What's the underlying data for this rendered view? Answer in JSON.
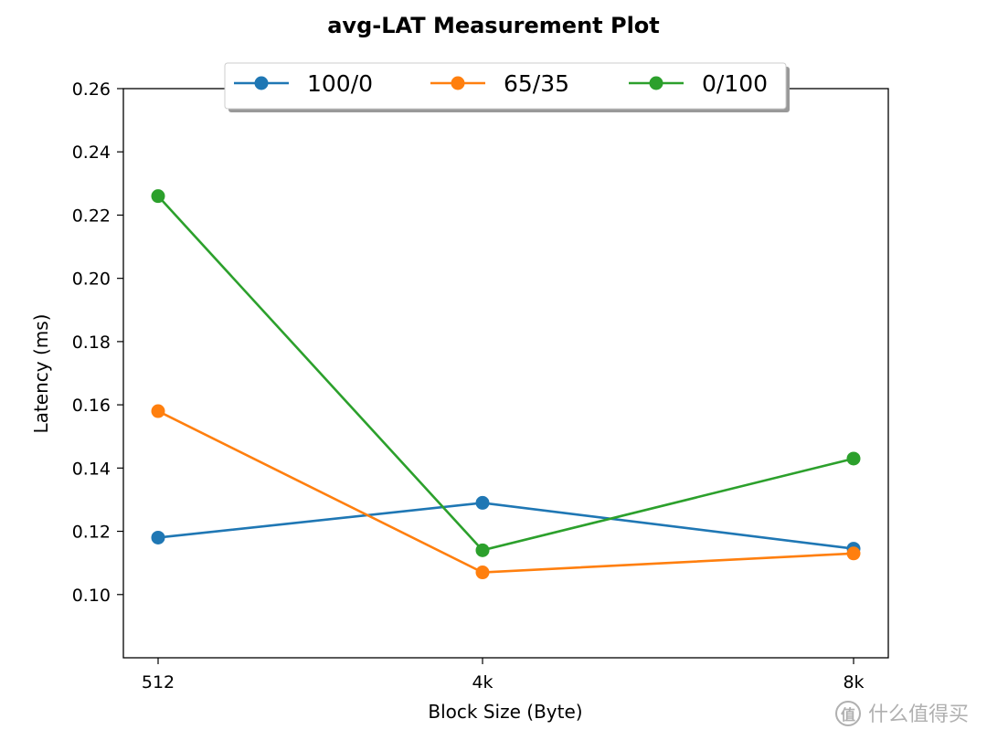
{
  "chart_data": {
    "type": "line",
    "title": "avg-LAT Measurement Plot",
    "xlabel": "Block Size (Byte)",
    "ylabel": "Latency (ms)",
    "categories": [
      "512",
      "4k",
      "8k"
    ],
    "ylim": [
      0.08,
      0.26
    ],
    "yticks": [
      "0.10",
      "0.12",
      "0.14",
      "0.16",
      "0.18",
      "0.20",
      "0.22",
      "0.24",
      "0.26"
    ],
    "legend_position": "top-center",
    "grid": false,
    "series": [
      {
        "name": "100/0",
        "color": "#1f77b4",
        "values": [
          0.118,
          0.129,
          0.1145
        ]
      },
      {
        "name": "65/35",
        "color": "#ff7f0e",
        "values": [
          0.158,
          0.107,
          0.113
        ]
      },
      {
        "name": "0/100",
        "color": "#2ca02c",
        "values": [
          0.226,
          0.114,
          0.143
        ]
      }
    ]
  },
  "watermark": {
    "icon": "worth-buying-logo-icon",
    "text": "什么值得买"
  }
}
